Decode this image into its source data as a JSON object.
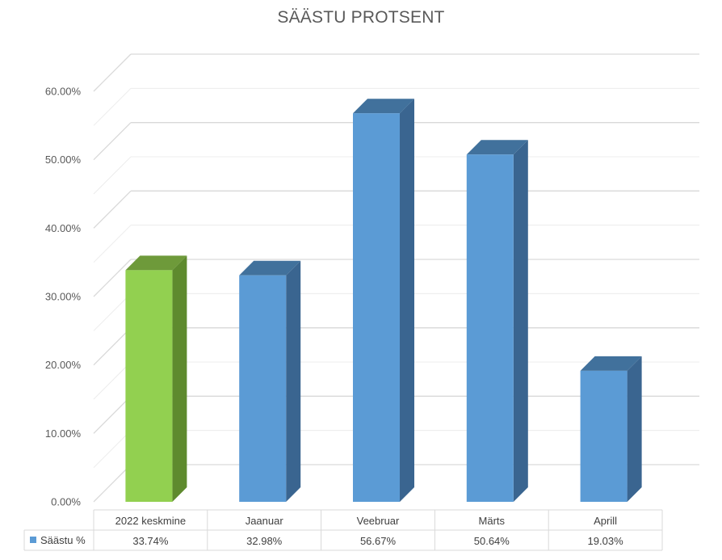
{
  "chart_data": {
    "type": "bar",
    "title": "SÄÄSTU PROTSENT",
    "categories": [
      "2022 keskmine",
      "Jaanuar",
      "Veebruar",
      "Märts",
      "Aprill"
    ],
    "series": [
      {
        "name": "Säästu %",
        "values": [
          33.74,
          32.98,
          56.67,
          50.64,
          19.03
        ],
        "value_labels": [
          "33.74%",
          "32.98%",
          "56.67%",
          "50.64%",
          "19.03%"
        ]
      }
    ],
    "ylim": [
      0,
      60
    ],
    "y_ticks": [
      "0.00%",
      "10.00%",
      "20.00%",
      "30.00%",
      "40.00%",
      "50.00%",
      "60.00%"
    ],
    "grid": true,
    "style_3d": true,
    "legend": "data-table",
    "colors": {
      "series_front": "#5B9BD5",
      "series_top": "#41719C",
      "series_side": "#3A6590",
      "highlight_front": "#92D050",
      "highlight_top": "#6E9A3A",
      "highlight_side": "#5E8A2E",
      "legend_key": "#5B9BD5"
    },
    "highlight_index": 0
  }
}
